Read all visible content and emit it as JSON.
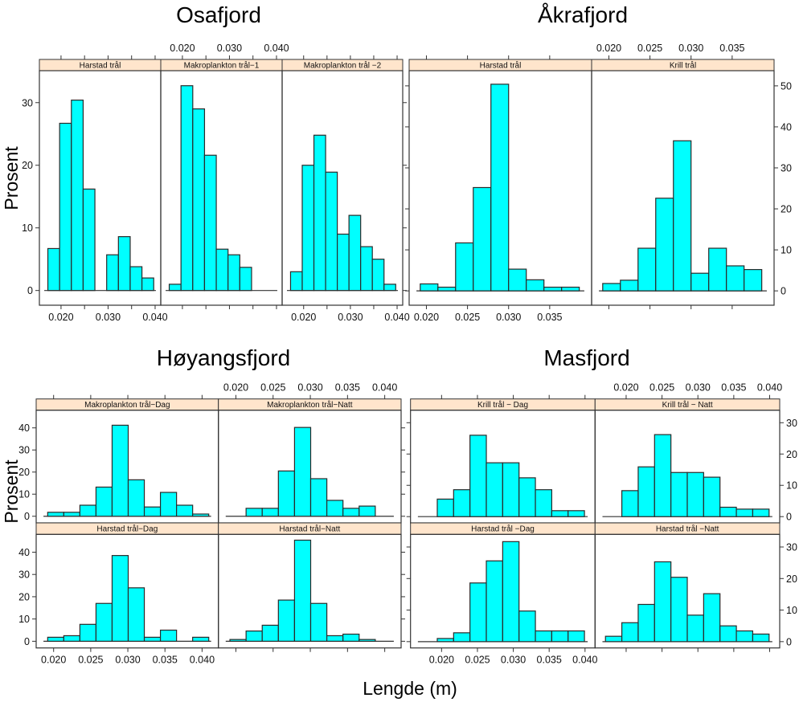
{
  "ylabel": "Prosent",
  "xlabel": "Lengde (m)",
  "colors": {
    "bar_fill": "#00FFFF",
    "bar_stroke": "#2a2a2a",
    "strip_fill": "#FFE5CC"
  },
  "chart_data": [
    {
      "type": "bar",
      "title": "Osafjord",
      "xlim": [
        0.0154,
        0.0412
      ],
      "ylim": [
        -2.35,
        35.1
      ],
      "xticks": [
        0.02,
        0.025,
        0.03,
        0.035,
        0.04
      ],
      "xtick_labels": [
        "0.020",
        "",
        "0.030",
        "",
        "0.040"
      ],
      "yticks": [
        0,
        10,
        20,
        30
      ],
      "ytick_labels": [
        "0",
        "10",
        "20",
        "30"
      ],
      "panels": [
        {
          "label": "Harstad trål",
          "row": 0,
          "col": 0,
          "bin_start": 0.0172,
          "bin_width": 0.0025,
          "values": [
            6.7,
            26.7,
            30.4,
            16.2,
            0,
            5.7,
            8.6,
            3.8,
            2.0
          ]
        },
        {
          "label": "Makroplankton trål−1",
          "row": 0,
          "col": 1,
          "bin_start": 0.0172,
          "bin_width": 0.0025,
          "values": [
            1.0,
            32.7,
            29.0,
            21.6,
            6.6,
            5.7,
            3.7
          ]
        },
        {
          "label": "Makroplankton trål −2",
          "row": 0,
          "col": 2,
          "bin_start": 0.0172,
          "bin_width": 0.0025,
          "values": [
            3.0,
            20.0,
            24.8,
            18.9,
            9.0,
            12.0,
            7.0,
            5.0,
            1.0
          ]
        }
      ]
    },
    {
      "type": "bar",
      "title": "Åkrafjord",
      "xlim": [
        0.0179,
        0.0401
      ],
      "ylim": [
        -3.5,
        53.7
      ],
      "xticks": [
        0.02,
        0.025,
        0.03,
        0.035
      ],
      "xtick_labels": [
        "0.020",
        "0.025",
        "0.030",
        "0.035"
      ],
      "yticks": [
        0,
        10,
        20,
        30,
        40,
        50
      ],
      "ytick_labels": [
        "0",
        "10",
        "20",
        "30",
        "40",
        "50"
      ],
      "panels": [
        {
          "label": "Harstad trål",
          "row": 0,
          "col": 0,
          "bin_start": 0.01925,
          "bin_width": 0.00215,
          "values": [
            1.7,
            0.9,
            11.7,
            25.2,
            50.4,
            5.3,
            2.7,
            0.9,
            0.9
          ]
        },
        {
          "label": "Krill trål",
          "row": 0,
          "col": 1,
          "bin_start": 0.01925,
          "bin_width": 0.00215,
          "values": [
            1.8,
            2.6,
            10.4,
            22.6,
            36.6,
            4.3,
            10.4,
            6.1,
            5.2
          ]
        }
      ]
    },
    {
      "type": "bar",
      "title": "Høyangsfjord",
      "xlim": [
        0.01765,
        0.0422
      ],
      "ylim": [
        -3.0,
        48.0
      ],
      "xticks": [
        0.02,
        0.025,
        0.03,
        0.035,
        0.04
      ],
      "xtick_labels": [
        "0.020",
        "0.025",
        "0.030",
        "0.035",
        "0.040"
      ],
      "yticks": [
        0,
        10,
        20,
        30,
        40
      ],
      "ytick_labels": [
        "0",
        "10",
        "20",
        "30",
        "40"
      ],
      "panels": [
        {
          "label": "Makroplankton trål−Dag",
          "row": 0,
          "col": 0,
          "bin_start": 0.0192,
          "bin_width": 0.00217,
          "values": [
            1.8,
            1.8,
            5.0,
            13.2,
            41.2,
            16.5,
            4.2,
            10.8,
            5.0,
            1.0
          ]
        },
        {
          "label": "Makroplankton trål−Natt",
          "row": 0,
          "col": 1,
          "bin_start": 0.0192,
          "bin_width": 0.00217,
          "values": [
            0,
            3.6,
            3.6,
            20.5,
            40.2,
            17.0,
            7.2,
            3.6,
            4.6,
            0
          ]
        },
        {
          "label": "Harstad trål−Dag",
          "row": 1,
          "col": 0,
          "bin_start": 0.0192,
          "bin_width": 0.00217,
          "values": [
            1.8,
            2.5,
            7.6,
            17.0,
            38.5,
            24.0,
            1.8,
            5.0,
            0,
            1.8
          ]
        },
        {
          "label": "Harstad trål−Natt",
          "row": 1,
          "col": 1,
          "bin_start": 0.0192,
          "bin_width": 0.00217,
          "values": [
            0.8,
            4.6,
            7.2,
            18.5,
            45.4,
            17.0,
            2.5,
            3.2,
            0.8,
            0
          ]
        }
      ]
    },
    {
      "type": "bar",
      "title": "Masfjord",
      "xlim": [
        0.01567,
        0.0414
      ],
      "ylim": [
        -2.0,
        34.0
      ],
      "xticks": [
        0.02,
        0.025,
        0.03,
        0.035,
        0.04
      ],
      "xtick_labels": [
        "0.020",
        "0.025",
        "0.030",
        "0.035",
        "0.040"
      ],
      "yticks": [
        0,
        10,
        20,
        30
      ],
      "ytick_labels": [
        "0",
        "10",
        "20",
        "30"
      ],
      "panels": [
        {
          "label": "Krill trål − Dag",
          "row": 0,
          "col": 0,
          "bin_start": 0.0194,
          "bin_width": 0.00228,
          "values": [
            5.6,
            8.6,
            26.0,
            17.2,
            17.2,
            12.4,
            8.6,
            1.9,
            1.9
          ]
        },
        {
          "label": "Krill trål − Natt",
          "row": 0,
          "col": 1,
          "bin_start": 0.0194,
          "bin_width": 0.00228,
          "values": [
            8.3,
            15.9,
            26.2,
            14.1,
            14.1,
            12.6,
            3.0,
            2.4,
            2.4
          ]
        },
        {
          "label": "Harstad trål −Dag",
          "row": 1,
          "col": 0,
          "bin_start": 0.0194,
          "bin_width": 0.00228,
          "values": [
            1.0,
            2.8,
            18.6,
            25.6,
            31.7,
            9.7,
            3.4,
            3.4,
            3.4
          ]
        },
        {
          "label": "Harstad trål −Natt",
          "row": 1,
          "col": 1,
          "bin_start": 0.01712,
          "bin_width": 0.00228,
          "values": [
            1.7,
            6.0,
            11.8,
            25.3,
            20.4,
            8.4,
            15.2,
            5.0,
            3.4,
            2.4
          ]
        }
      ]
    }
  ]
}
